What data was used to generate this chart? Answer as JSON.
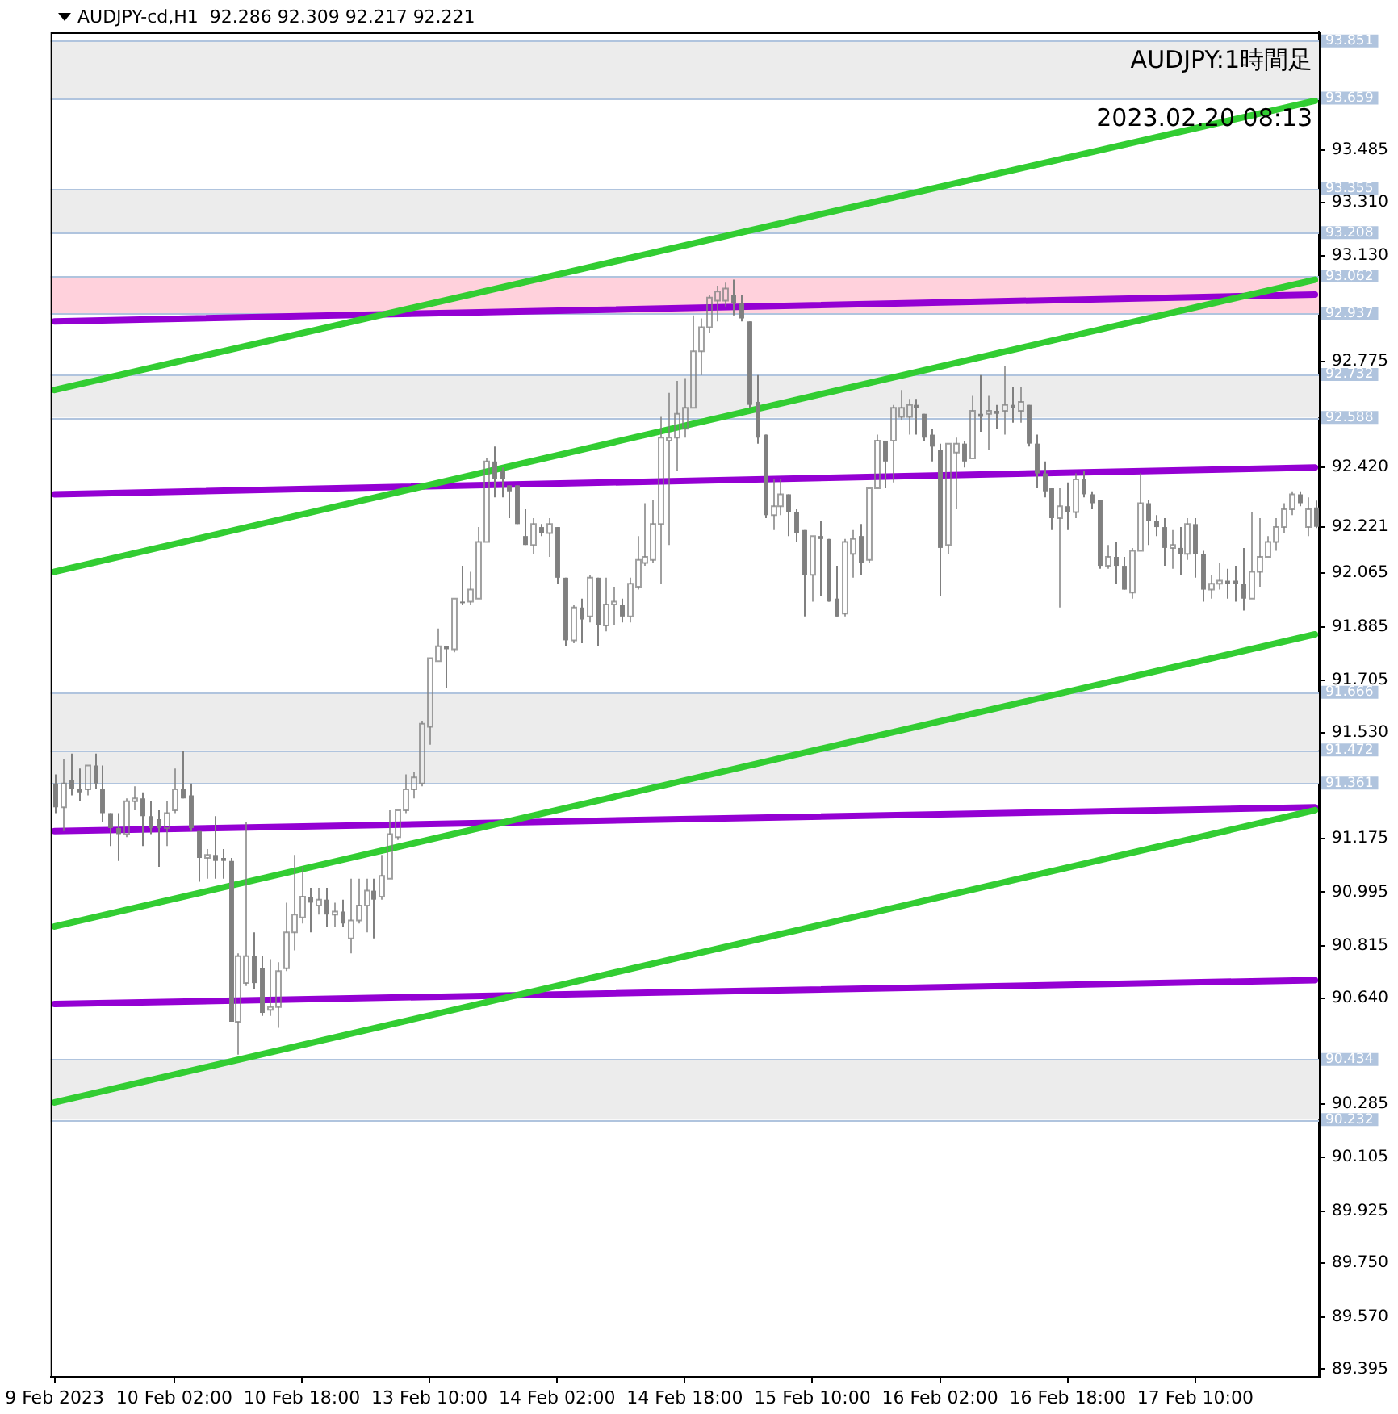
{
  "chart_data": {
    "type": "candlestick",
    "title": "AUDJPY-cd,H1  92.286 92.309 92.217 92.221",
    "subtitle": "AUDJPY:1時間足",
    "annotations": [
      "2023.02.20 08:13"
    ],
    "color": "#808080",
    "marker": "none",
    "categories": [
      "9 Feb 2023",
      null,
      null,
      null,
      null,
      null,
      null,
      null,
      null,
      null,
      null,
      null,
      null,
      null,
      null,
      "10 Feb 02:00",
      null,
      null,
      null,
      null,
      null,
      null,
      null,
      null,
      null,
      null,
      null,
      null,
      null,
      null,
      null,
      "10 Feb 18:00",
      null,
      null,
      null,
      null,
      null,
      null,
      null,
      null,
      null,
      null,
      null,
      null,
      null,
      null,
      null,
      "13 Feb 10:00",
      null,
      null,
      null,
      null,
      null,
      null,
      null,
      null,
      null,
      null,
      null,
      null,
      null,
      null,
      null,
      "14 Feb 02:00",
      null,
      null,
      null,
      null,
      null,
      null,
      null,
      null,
      null,
      null,
      null,
      null,
      null,
      null,
      null,
      "14 Feb 18:00",
      null,
      null,
      null,
      null,
      null,
      null,
      null,
      null,
      null,
      null,
      null,
      null,
      null,
      null,
      null,
      "15 Feb 10:00",
      null,
      null,
      null,
      null,
      null,
      null,
      null,
      null,
      null,
      null,
      null,
      null,
      null,
      null,
      null,
      "16 Feb 02:00",
      null,
      null,
      null,
      null,
      null,
      null,
      null,
      null,
      null,
      null,
      null,
      null,
      null,
      null,
      null,
      "16 Feb 18:00",
      null,
      null,
      null,
      null,
      null,
      null,
      null,
      null,
      null,
      null,
      null,
      null,
      null,
      null,
      null,
      "17 Feb 10:00",
      null,
      null,
      null,
      null,
      null,
      null,
      null,
      null,
      null,
      null,
      null,
      null,
      null,
      null,
      null
    ],
    "ohlc": [
      [
        91.36,
        91.39,
        91.26,
        91.28
      ],
      [
        91.28,
        91.44,
        91.2,
        91.36
      ],
      [
        91.37,
        91.46,
        91.32,
        91.34
      ],
      [
        91.34,
        91.41,
        91.3,
        91.33
      ],
      [
        91.34,
        91.42,
        91.32,
        91.42
      ],
      [
        91.42,
        91.46,
        91.34,
        91.36
      ],
      [
        91.34,
        91.42,
        91.23,
        91.26
      ],
      [
        91.26,
        91.26,
        91.15,
        91.21
      ],
      [
        91.21,
        91.26,
        91.1,
        91.19
      ],
      [
        91.19,
        91.31,
        91.18,
        91.3
      ],
      [
        91.3,
        91.35,
        91.27,
        91.31
      ],
      [
        91.31,
        91.33,
        91.15,
        91.25
      ],
      [
        91.25,
        91.3,
        91.19,
        91.21
      ],
      [
        91.24,
        91.27,
        91.08,
        91.21
      ],
      [
        91.21,
        91.3,
        91.15,
        91.26
      ],
      [
        91.27,
        91.41,
        91.26,
        91.34
      ],
      [
        91.34,
        91.47,
        91.31,
        91.31
      ],
      [
        91.32,
        91.36,
        91.2,
        91.21
      ],
      [
        91.2,
        91.2,
        91.03,
        91.11
      ],
      [
        91.11,
        91.14,
        91.04,
        91.12
      ],
      [
        91.12,
        91.25,
        91.04,
        91.1
      ],
      [
        91.11,
        91.14,
        91.04,
        91.1
      ],
      [
        91.1,
        91.11,
        90.56,
        90.56
      ],
      [
        90.56,
        90.79,
        90.45,
        90.78
      ],
      [
        90.69,
        91.23,
        90.68,
        90.78
      ],
      [
        90.78,
        90.86,
        90.67,
        90.69
      ],
      [
        90.74,
        90.78,
        90.58,
        90.59
      ],
      [
        90.6,
        90.77,
        90.58,
        90.61
      ],
      [
        90.61,
        90.76,
        90.54,
        90.73
      ],
      [
        90.74,
        90.96,
        90.73,
        90.86
      ],
      [
        90.86,
        91.12,
        90.8,
        90.92
      ],
      [
        90.91,
        91.08,
        90.89,
        90.98
      ],
      [
        90.98,
        91.01,
        90.86,
        90.96
      ],
      [
        90.95,
        91.01,
        90.92,
        90.97
      ],
      [
        90.97,
        91.01,
        90.88,
        90.92
      ],
      [
        90.92,
        90.96,
        90.88,
        90.93
      ],
      [
        90.93,
        90.97,
        90.88,
        90.89
      ],
      [
        90.84,
        91.04,
        90.79,
        90.9
      ],
      [
        90.9,
        91.04,
        90.89,
        90.95
      ],
      [
        90.95,
        91.04,
        90.86,
        91.0
      ],
      [
        91.0,
        91.04,
        90.84,
        90.97
      ],
      [
        90.98,
        91.12,
        90.97,
        91.05
      ],
      [
        91.04,
        91.27,
        91.04,
        91.19
      ],
      [
        91.18,
        91.27,
        91.17,
        91.27
      ],
      [
        91.27,
        91.39,
        91.26,
        91.34
      ],
      [
        91.34,
        91.4,
        91.31,
        91.38
      ],
      [
        91.36,
        91.57,
        91.35,
        91.56
      ],
      [
        91.55,
        91.78,
        91.49,
        91.78
      ],
      [
        91.77,
        91.88,
        91.77,
        91.82
      ],
      [
        91.82,
        91.82,
        91.68,
        91.81
      ],
      [
        91.81,
        91.98,
        91.8,
        91.98
      ],
      [
        91.97,
        92.09,
        91.96,
        91.97
      ],
      [
        91.97,
        92.07,
        91.96,
        92.01
      ],
      [
        91.98,
        92.22,
        91.98,
        92.17
      ],
      [
        92.17,
        92.45,
        92.17,
        92.44
      ],
      [
        92.44,
        92.49,
        92.32,
        92.38
      ],
      [
        92.41,
        92.42,
        92.32,
        92.38
      ],
      [
        92.36,
        92.36,
        92.25,
        92.34
      ],
      [
        92.36,
        92.36,
        92.23,
        92.23
      ],
      [
        92.19,
        92.28,
        92.16,
        92.16
      ],
      [
        92.16,
        92.25,
        92.13,
        92.23
      ],
      [
        92.22,
        92.23,
        92.19,
        92.2
      ],
      [
        92.2,
        92.25,
        92.12,
        92.23
      ],
      [
        92.22,
        92.22,
        92.03,
        92.05
      ],
      [
        92.05,
        92.05,
        91.82,
        91.84
      ],
      [
        91.84,
        91.96,
        91.83,
        91.95
      ],
      [
        91.95,
        91.98,
        91.83,
        91.91
      ],
      [
        91.92,
        92.06,
        91.9,
        92.05
      ],
      [
        92.05,
        92.05,
        91.82,
        91.89
      ],
      [
        91.89,
        92.05,
        91.87,
        91.96
      ],
      [
        91.96,
        92.02,
        91.89,
        91.97
      ],
      [
        91.96,
        91.98,
        91.9,
        91.92
      ],
      [
        91.92,
        92.05,
        91.9,
        92.03
      ],
      [
        92.02,
        92.19,
        92.01,
        92.11
      ],
      [
        92.1,
        92.3,
        92.09,
        92.12
      ],
      [
        92.11,
        92.31,
        92.1,
        92.23
      ],
      [
        92.23,
        92.59,
        92.03,
        92.52
      ],
      [
        92.51,
        92.67,
        92.16,
        92.52
      ],
      [
        92.52,
        92.71,
        92.41,
        92.6
      ],
      [
        92.55,
        92.72,
        92.52,
        92.62
      ],
      [
        92.62,
        92.93,
        92.62,
        92.81
      ],
      [
        92.81,
        92.92,
        92.73,
        92.89
      ],
      [
        92.89,
        93.0,
        92.87,
        92.99
      ],
      [
        92.98,
        93.03,
        92.91,
        93.01
      ],
      [
        92.98,
        93.04,
        92.96,
        93.02
      ],
      [
        93.0,
        93.05,
        92.93,
        92.97
      ],
      [
        92.97,
        93.0,
        92.91,
        92.92
      ],
      [
        92.91,
        92.91,
        92.62,
        92.63
      ],
      [
        92.64,
        92.73,
        92.5,
        92.52
      ],
      [
        92.53,
        92.53,
        92.25,
        92.26
      ],
      [
        92.26,
        92.38,
        92.21,
        92.29
      ],
      [
        92.29,
        92.38,
        92.26,
        92.33
      ],
      [
        92.33,
        92.33,
        92.19,
        92.27
      ],
      [
        92.27,
        92.28,
        92.17,
        92.2
      ],
      [
        92.21,
        92.21,
        91.92,
        92.06
      ],
      [
        92.06,
        92.19,
        91.97,
        92.19
      ],
      [
        92.19,
        92.24,
        91.99,
        92.18
      ],
      [
        92.18,
        92.18,
        91.97,
        91.97
      ],
      [
        91.98,
        92.09,
        91.92,
        91.92
      ],
      [
        91.93,
        92.18,
        91.92,
        92.17
      ],
      [
        92.13,
        92.21,
        92.05,
        92.18
      ],
      [
        92.19,
        92.23,
        92.06,
        92.1
      ],
      [
        92.11,
        92.35,
        92.1,
        92.35
      ],
      [
        92.35,
        92.53,
        92.35,
        92.51
      ],
      [
        92.51,
        92.51,
        92.35,
        92.44
      ],
      [
        92.51,
        92.63,
        92.37,
        92.62
      ],
      [
        92.59,
        92.68,
        92.58,
        92.62
      ],
      [
        92.59,
        92.65,
        92.53,
        92.63
      ],
      [
        92.63,
        92.65,
        92.53,
        92.62
      ],
      [
        92.6,
        92.6,
        92.51,
        92.52
      ],
      [
        92.53,
        92.55,
        92.44,
        92.49
      ],
      [
        92.48,
        92.5,
        91.99,
        92.15
      ],
      [
        92.16,
        92.5,
        92.13,
        92.5
      ],
      [
        92.47,
        92.52,
        92.28,
        92.5
      ],
      [
        92.5,
        92.51,
        92.42,
        92.44
      ],
      [
        92.45,
        92.66,
        92.45,
        92.61
      ],
      [
        92.6,
        92.73,
        92.54,
        92.59
      ],
      [
        92.6,
        92.66,
        92.48,
        92.61
      ],
      [
        92.61,
        92.63,
        92.55,
        92.6
      ],
      [
        92.61,
        92.76,
        92.53,
        92.63
      ],
      [
        92.63,
        92.69,
        92.57,
        92.62
      ],
      [
        92.61,
        92.69,
        92.57,
        92.64
      ],
      [
        92.63,
        92.63,
        92.49,
        92.5
      ],
      [
        92.5,
        92.53,
        92.35,
        92.4
      ],
      [
        92.4,
        92.44,
        92.32,
        92.34
      ],
      [
        92.35,
        92.35,
        92.21,
        92.25
      ],
      [
        92.25,
        92.35,
        91.95,
        92.29
      ],
      [
        92.29,
        92.37,
        92.21,
        92.27
      ],
      [
        92.27,
        92.4,
        92.25,
        92.38
      ],
      [
        92.38,
        92.41,
        92.32,
        92.33
      ],
      [
        92.33,
        92.34,
        92.28,
        92.3
      ],
      [
        92.31,
        92.31,
        92.08,
        92.09
      ],
      [
        92.09,
        92.16,
        92.08,
        92.12
      ],
      [
        92.12,
        92.17,
        92.03,
        92.09
      ],
      [
        92.09,
        92.12,
        92.01,
        92.01
      ],
      [
        92.0,
        92.15,
        91.98,
        92.14
      ],
      [
        92.14,
        92.4,
        92.14,
        92.3
      ],
      [
        92.3,
        92.31,
        92.16,
        92.24
      ],
      [
        92.24,
        92.26,
        92.19,
        92.22
      ],
      [
        92.22,
        92.25,
        92.09,
        92.15
      ],
      [
        92.15,
        92.21,
        92.08,
        92.16
      ],
      [
        92.15,
        92.22,
        92.06,
        92.13
      ],
      [
        92.13,
        92.25,
        92.11,
        92.23
      ],
      [
        92.23,
        92.25,
        92.05,
        92.13
      ],
      [
        92.13,
        92.14,
        91.97,
        92.01
      ],
      [
        92.01,
        92.06,
        91.98,
        92.03
      ],
      [
        92.03,
        92.1,
        92.01,
        92.04
      ],
      [
        92.04,
        92.08,
        91.98,
        92.03
      ],
      [
        92.04,
        92.09,
        91.97,
        92.03
      ],
      [
        92.03,
        92.15,
        91.94,
        91.98
      ],
      [
        91.98,
        92.27,
        91.98,
        92.07
      ],
      [
        92.07,
        92.25,
        92.02,
        92.12
      ],
      [
        92.12,
        92.19,
        92.12,
        92.17
      ],
      [
        92.17,
        92.25,
        92.14,
        92.22
      ],
      [
        92.22,
        92.3,
        92.2,
        92.28
      ],
      [
        92.28,
        92.34,
        92.26,
        92.33
      ],
      [
        92.33,
        92.34,
        92.29,
        92.3
      ],
      [
        92.22,
        92.32,
        92.19,
        92.28
      ],
      [
        92.286,
        92.309,
        92.217,
        92.221
      ]
    ],
    "series": [
      {
        "type": "line",
        "color": "#32cd32",
        "values": [
          92.68,
          null,
          null,
          null,
          null,
          null,
          null,
          null,
          null,
          null,
          null,
          null,
          null,
          null,
          null,
          null,
          null,
          null,
          null,
          null,
          null,
          null,
          null,
          null,
          null,
          null,
          null,
          null,
          null,
          null,
          null,
          null,
          null,
          null,
          null,
          null,
          null,
          null,
          null,
          null,
          null,
          null,
          null,
          null,
          null,
          null,
          null,
          null,
          null,
          null,
          null,
          null,
          null,
          null,
          null,
          null,
          null,
          null,
          null,
          null,
          null,
          null,
          null,
          null,
          null,
          null,
          null,
          null,
          null,
          null,
          null,
          null,
          null,
          null,
          null,
          null,
          null,
          null,
          null,
          null,
          null,
          null,
          null,
          null,
          null,
          null,
          null,
          null,
          null,
          null,
          null,
          null,
          null,
          null,
          null,
          null,
          null,
          null,
          null,
          null,
          null,
          null,
          null,
          null,
          null,
          null,
          null,
          null,
          null,
          null,
          null,
          null,
          null,
          null,
          null,
          null,
          null,
          null,
          null,
          null,
          null,
          null,
          null,
          null,
          null,
          null,
          null,
          null,
          null,
          null,
          null,
          null,
          null,
          null,
          null,
          null,
          null,
          null,
          null,
          null,
          null,
          null,
          null,
          null,
          null,
          null,
          null,
          null,
          null,
          null,
          null,
          null,
          null,
          null,
          null,
          null,
          null,
          null,
          93.65
        ]
      },
      {
        "type": "line",
        "color": "#32cd32",
        "values": [
          92.07,
          null,
          null,
          null,
          null,
          null,
          null,
          null,
          null,
          null,
          null,
          null,
          null,
          null,
          null,
          null,
          null,
          null,
          null,
          null,
          null,
          null,
          null,
          null,
          null,
          null,
          null,
          null,
          null,
          null,
          null,
          null,
          null,
          null,
          null,
          null,
          null,
          null,
          null,
          null,
          null,
          null,
          null,
          null,
          null,
          null,
          null,
          null,
          null,
          null,
          null,
          null,
          null,
          null,
          null,
          null,
          null,
          null,
          null,
          null,
          null,
          null,
          null,
          null,
          null,
          null,
          null,
          null,
          null,
          null,
          null,
          null,
          null,
          null,
          null,
          null,
          null,
          null,
          null,
          null,
          null,
          null,
          null,
          null,
          null,
          null,
          null,
          null,
          null,
          null,
          null,
          null,
          null,
          null,
          null,
          null,
          null,
          null,
          null,
          null,
          null,
          null,
          null,
          null,
          null,
          null,
          null,
          null,
          null,
          null,
          null,
          null,
          null,
          null,
          null,
          null,
          null,
          null,
          null,
          null,
          null,
          null,
          null,
          null,
          null,
          null,
          null,
          null,
          null,
          null,
          null,
          null,
          null,
          null,
          null,
          null,
          null,
          null,
          null,
          null,
          null,
          null,
          null,
          null,
          null,
          null,
          null,
          null,
          null,
          null,
          null,
          null,
          null,
          null,
          null,
          null,
          null,
          null,
          93.05
        ]
      },
      {
        "type": "line",
        "color": "#32cd32",
        "values": [
          90.88,
          null,
          null,
          null,
          null,
          null,
          null,
          null,
          null,
          null,
          null,
          null,
          null,
          null,
          null,
          null,
          null,
          null,
          null,
          null,
          null,
          null,
          null,
          null,
          null,
          null,
          null,
          null,
          null,
          null,
          null,
          null,
          null,
          null,
          null,
          null,
          null,
          null,
          null,
          null,
          null,
          null,
          null,
          null,
          null,
          null,
          null,
          null,
          null,
          null,
          null,
          null,
          null,
          null,
          null,
          null,
          null,
          null,
          null,
          null,
          null,
          null,
          null,
          null,
          null,
          null,
          null,
          null,
          null,
          null,
          null,
          null,
          null,
          null,
          null,
          null,
          null,
          null,
          null,
          null,
          null,
          null,
          null,
          null,
          null,
          null,
          null,
          null,
          null,
          null,
          null,
          null,
          null,
          null,
          null,
          null,
          null,
          null,
          null,
          null,
          null,
          null,
          null,
          null,
          null,
          null,
          null,
          null,
          null,
          null,
          null,
          null,
          null,
          null,
          null,
          null,
          null,
          null,
          null,
          null,
          null,
          null,
          null,
          null,
          null,
          null,
          null,
          null,
          null,
          null,
          null,
          null,
          null,
          null,
          null,
          null,
          null,
          null,
          null,
          null,
          null,
          null,
          null,
          null,
          null,
          null,
          null,
          null,
          null,
          null,
          null,
          null,
          null,
          null,
          null,
          null,
          null,
          null,
          91.86
        ]
      },
      {
        "type": "line",
        "color": "#32cd32",
        "values": [
          90.29,
          null,
          null,
          null,
          null,
          null,
          null,
          null,
          null,
          null,
          null,
          null,
          null,
          null,
          null,
          null,
          null,
          null,
          null,
          null,
          null,
          null,
          null,
          null,
          null,
          null,
          null,
          null,
          null,
          null,
          null,
          null,
          null,
          null,
          null,
          null,
          null,
          null,
          null,
          null,
          null,
          null,
          null,
          null,
          null,
          null,
          null,
          null,
          null,
          null,
          null,
          null,
          null,
          null,
          null,
          null,
          null,
          null,
          null,
          null,
          null,
          null,
          null,
          null,
          null,
          null,
          null,
          null,
          null,
          null,
          null,
          null,
          null,
          null,
          null,
          null,
          null,
          null,
          null,
          null,
          null,
          null,
          null,
          null,
          null,
          null,
          null,
          null,
          null,
          null,
          null,
          null,
          null,
          null,
          null,
          null,
          null,
          null,
          null,
          null,
          null,
          null,
          null,
          null,
          null,
          null,
          null,
          null,
          null,
          null,
          null,
          null,
          null,
          null,
          null,
          null,
          null,
          null,
          null,
          null,
          null,
          null,
          null,
          null,
          null,
          null,
          null,
          null,
          null,
          null,
          null,
          null,
          null,
          null,
          null,
          null,
          null,
          null,
          null,
          null,
          null,
          null,
          null,
          null,
          null,
          null,
          null,
          null,
          null,
          null,
          null,
          null,
          null,
          null,
          null,
          null,
          null,
          null,
          91.27
        ]
      },
      {
        "type": "line",
        "color": "#9400d3",
        "values": [
          92.91,
          null,
          null,
          null,
          null,
          null,
          null,
          null,
          null,
          null,
          null,
          null,
          null,
          null,
          null,
          null,
          null,
          null,
          null,
          null,
          null,
          null,
          null,
          null,
          null,
          null,
          null,
          null,
          null,
          null,
          null,
          null,
          null,
          null,
          null,
          null,
          null,
          null,
          null,
          null,
          null,
          null,
          null,
          null,
          null,
          null,
          null,
          null,
          null,
          null,
          null,
          null,
          null,
          null,
          null,
          null,
          null,
          null,
          null,
          null,
          null,
          null,
          null,
          null,
          null,
          null,
          null,
          null,
          null,
          null,
          null,
          null,
          null,
          null,
          null,
          null,
          null,
          null,
          null,
          null,
          null,
          null,
          null,
          null,
          null,
          null,
          null,
          null,
          null,
          null,
          null,
          null,
          null,
          null,
          null,
          null,
          null,
          null,
          null,
          null,
          null,
          null,
          null,
          null,
          null,
          null,
          null,
          null,
          null,
          null,
          null,
          null,
          null,
          null,
          null,
          null,
          null,
          null,
          null,
          null,
          null,
          null,
          null,
          null,
          null,
          null,
          null,
          null,
          null,
          null,
          null,
          null,
          null,
          null,
          null,
          null,
          null,
          null,
          null,
          null,
          null,
          null,
          null,
          null,
          null,
          null,
          null,
          null,
          null,
          null,
          null,
          null,
          null,
          null,
          null,
          null,
          null,
          null,
          93.0
        ]
      },
      {
        "type": "line",
        "color": "#9400d3",
        "values": [
          92.33,
          null,
          null,
          null,
          null,
          null,
          null,
          null,
          null,
          null,
          null,
          null,
          null,
          null,
          null,
          null,
          null,
          null,
          null,
          null,
          null,
          null,
          null,
          null,
          null,
          null,
          null,
          null,
          null,
          null,
          null,
          null,
          null,
          null,
          null,
          null,
          null,
          null,
          null,
          null,
          null,
          null,
          null,
          null,
          null,
          null,
          null,
          null,
          null,
          null,
          null,
          null,
          null,
          null,
          null,
          null,
          null,
          null,
          null,
          null,
          null,
          null,
          null,
          null,
          null,
          null,
          null,
          null,
          null,
          null,
          null,
          null,
          null,
          null,
          null,
          null,
          null,
          null,
          null,
          null,
          null,
          null,
          null,
          null,
          null,
          null,
          null,
          null,
          null,
          null,
          null,
          null,
          null,
          null,
          null,
          null,
          null,
          null,
          null,
          null,
          null,
          null,
          null,
          null,
          null,
          null,
          null,
          null,
          null,
          null,
          null,
          null,
          null,
          null,
          null,
          null,
          null,
          null,
          null,
          null,
          null,
          null,
          null,
          null,
          null,
          null,
          null,
          null,
          null,
          null,
          null,
          null,
          null,
          null,
          null,
          null,
          null,
          null,
          null,
          null,
          null,
          null,
          null,
          null,
          null,
          null,
          null,
          null,
          null,
          null,
          null,
          null,
          null,
          null,
          null,
          null,
          null,
          null,
          92.42
        ]
      },
      {
        "type": "line",
        "color": "#9400d3",
        "values": [
          91.2,
          null,
          null,
          null,
          null,
          null,
          null,
          null,
          null,
          null,
          null,
          null,
          null,
          null,
          null,
          null,
          null,
          null,
          null,
          null,
          null,
          null,
          null,
          null,
          null,
          null,
          null,
          null,
          null,
          null,
          null,
          null,
          null,
          null,
          null,
          null,
          null,
          null,
          null,
          null,
          null,
          null,
          null,
          null,
          null,
          null,
          null,
          null,
          null,
          null,
          null,
          null,
          null,
          null,
          null,
          null,
          null,
          null,
          null,
          null,
          null,
          null,
          null,
          null,
          null,
          null,
          null,
          null,
          null,
          null,
          null,
          null,
          null,
          null,
          null,
          null,
          null,
          null,
          null,
          null,
          null,
          null,
          null,
          null,
          null,
          null,
          null,
          null,
          null,
          null,
          null,
          null,
          null,
          null,
          null,
          null,
          null,
          null,
          null,
          null,
          null,
          null,
          null,
          null,
          null,
          null,
          null,
          null,
          null,
          null,
          null,
          null,
          null,
          null,
          null,
          null,
          null,
          null,
          null,
          null,
          null,
          null,
          null,
          null,
          null,
          null,
          null,
          null,
          null,
          null,
          null,
          null,
          null,
          null,
          null,
          null,
          null,
          null,
          null,
          null,
          null,
          null,
          null,
          null,
          null,
          null,
          null,
          null,
          null,
          null,
          null,
          null,
          null,
          null,
          null,
          null,
          null,
          null,
          91.28
        ]
      },
      {
        "type": "line",
        "color": "#9400d3",
        "values": [
          90.62,
          null,
          null,
          null,
          null,
          null,
          null,
          null,
          null,
          null,
          null,
          null,
          null,
          null,
          null,
          null,
          null,
          null,
          null,
          null,
          null,
          null,
          null,
          null,
          null,
          null,
          null,
          null,
          null,
          null,
          null,
          null,
          null,
          null,
          null,
          null,
          null,
          null,
          null,
          null,
          null,
          null,
          null,
          null,
          null,
          null,
          null,
          null,
          null,
          null,
          null,
          null,
          null,
          null,
          null,
          null,
          null,
          null,
          null,
          null,
          null,
          null,
          null,
          null,
          null,
          null,
          null,
          null,
          null,
          null,
          null,
          null,
          null,
          null,
          null,
          null,
          null,
          null,
          null,
          null,
          null,
          null,
          null,
          null,
          null,
          null,
          null,
          null,
          null,
          null,
          null,
          null,
          null,
          null,
          null,
          null,
          null,
          null,
          null,
          null,
          null,
          null,
          null,
          null,
          null,
          null,
          null,
          null,
          null,
          null,
          null,
          null,
          null,
          null,
          null,
          null,
          null,
          null,
          null,
          null,
          null,
          null,
          null,
          null,
          null,
          null,
          null,
          null,
          null,
          null,
          null,
          null,
          null,
          null,
          null,
          null,
          null,
          null,
          null,
          null,
          null,
          null,
          null,
          null,
          null,
          null,
          null,
          null,
          null,
          null,
          null,
          null,
          null,
          null,
          null,
          null,
          null,
          null,
          90.7
        ]
      }
    ],
    "ylim": [
      89.37,
      93.88
    ],
    "yticks": [
      93.485,
      {
        "value": 93.31,
        "label": "93.310"
      },
      {
        "value": 93.13,
        "label": "93.130"
      },
      92.775,
      {
        "value": 92.42,
        "label": "92.420"
      },
      {
        "value": 92.221,
        "label": "92.221"
      },
      92.065,
      91.885,
      91.705,
      {
        "value": 91.53,
        "label": "91.530"
      },
      91.175,
      90.995,
      90.815,
      {
        "value": 90.64,
        "label": "90.640"
      },
      90.285,
      90.105,
      89.925,
      {
        "value": 89.75,
        "label": "89.750"
      },
      {
        "value": 89.57,
        "label": "89.570"
      },
      89.395
    ],
    "bands": [
      {
        "axis": "y",
        "from": 93.659,
        "to": 93.851,
        "color": "#ececec"
      },
      {
        "axis": "y",
        "from": 93.208,
        "to": 93.355,
        "color": "#ececec"
      },
      {
        "axis": "y",
        "from": 92.937,
        "to": 93.062,
        "color": "#ffd1dc"
      },
      {
        "axis": "y",
        "from": 92.588,
        "to": 92.732,
        "color": "#ececec"
      },
      {
        "axis": "y",
        "from": 91.472,
        "to": 91.666,
        "color": "#ececec"
      },
      {
        "axis": "y",
        "from": 91.361,
        "to": 91.472,
        "color": "#ececec"
      },
      {
        "axis": "y",
        "from": 90.232,
        "to": 90.434,
        "color": "#ececec"
      }
    ],
    "ref_lines": [
      {
        "axis": "y",
        "value": 93.851,
        "label": "93.851",
        "color": "#b0c4de"
      },
      {
        "axis": "y",
        "value": 93.659,
        "label": "93.659",
        "color": "#b0c4de"
      },
      {
        "axis": "y",
        "value": 93.355,
        "label": "93.355",
        "color": "#b0c4de"
      },
      {
        "axis": "y",
        "value": 93.208,
        "label": "93.208",
        "color": "#b0c4de"
      },
      {
        "axis": "y",
        "value": 93.062,
        "label": "93.062",
        "color": "#b0c4de"
      },
      {
        "axis": "y",
        "value": 92.937,
        "label": "92.937",
        "color": "#b0c4de"
      },
      {
        "axis": "y",
        "value": 92.732,
        "label": "92.732",
        "color": "#b0c4de"
      },
      {
        "axis": "y",
        "value": 92.588,
        "label": "92.588",
        "color": "#b0c4de"
      },
      {
        "axis": "y",
        "value": 91.666,
        "label": "91.666",
        "color": "#b0c4de"
      },
      {
        "axis": "y",
        "value": 91.472,
        "label": "91.472",
        "color": "#b0c4de"
      },
      {
        "axis": "y",
        "value": 91.361,
        "label": "91.361",
        "color": "#b0c4de"
      },
      {
        "axis": "y",
        "value": 90.434,
        "label": "90.434",
        "color": "#b0c4de"
      },
      {
        "axis": "y",
        "value": 90.232,
        "label": "90.232",
        "color": "#b0c4de"
      }
    ]
  }
}
